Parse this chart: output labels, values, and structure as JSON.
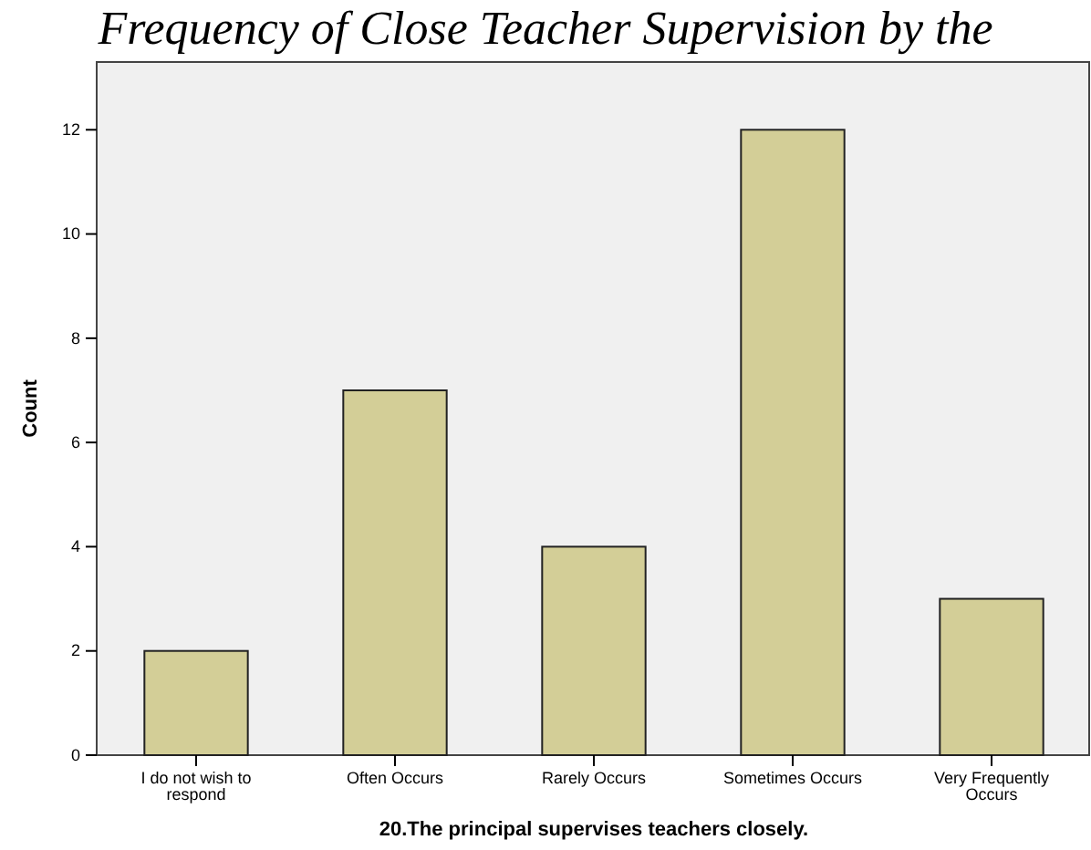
{
  "chart_data": {
    "type": "bar",
    "title": "Frequency of Close Teacher Supervision by the",
    "xlabel": "20.The principal supervises teachers closely.",
    "ylabel": "Count",
    "categories": [
      "I do not wish to respond",
      "Often Occurs",
      "Rarely Occurs",
      "Sometimes Occurs",
      "Very Frequently Occurs"
    ],
    "values": [
      2,
      7,
      4,
      12,
      3
    ],
    "color": "#d3ce97",
    "ylim": [
      0,
      13.3
    ],
    "yticks": [
      0,
      2,
      4,
      6,
      8,
      10,
      12
    ],
    "grid": false
  }
}
